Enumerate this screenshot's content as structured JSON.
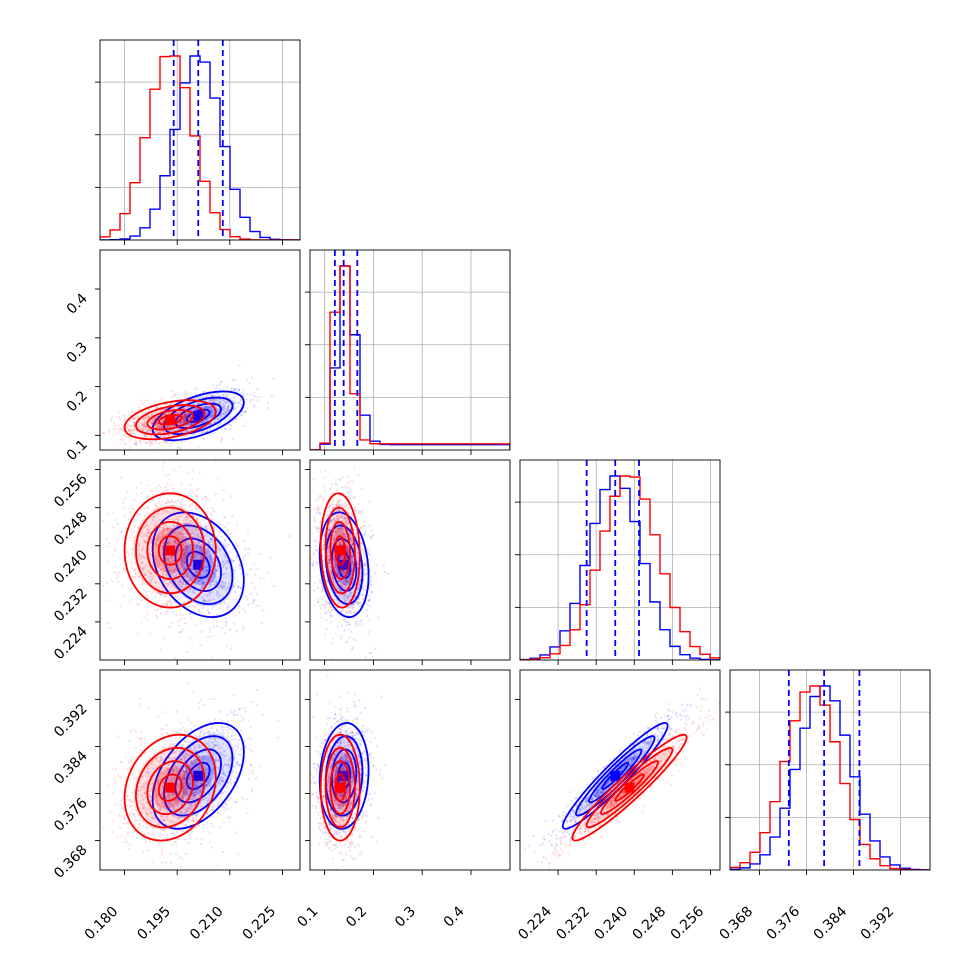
{
  "chart_data": {
    "type": "corner",
    "parameters": 4,
    "grid": true,
    "colors": {
      "series_a": "#0000ff",
      "series_b": "#ff0000"
    },
    "series": [
      {
        "color": "#0000ff",
        "means": [
          0.201,
          0.14,
          0.236,
          0.379
        ],
        "stds": [
          0.0065,
          0.025,
          0.0055,
          0.0045
        ],
        "corr": {
          "0-1": 0.55,
          "0-2": -0.3,
          "0-3": 0.45,
          "1-2": -0.2,
          "1-3": 0.1,
          "2-3": 0.95
        }
      },
      {
        "color": "#ff0000",
        "means": [
          0.193,
          0.132,
          0.239,
          0.377
        ],
        "stds": [
          0.0065,
          0.02,
          0.006,
          0.0045
        ],
        "corr": {
          "0-1": 0.4,
          "0-2": 0.0,
          "0-3": 0.2,
          "1-2": -0.1,
          "1-3": 0.0,
          "2-3": 0.95
        }
      }
    ],
    "quantiles": [
      [
        0.194,
        0.201,
        0.208
      ],
      [
        0.121,
        0.139,
        0.167
      ],
      [
        0.23,
        0.236,
        0.241
      ],
      [
        0.373,
        0.379,
        0.385
      ]
    ],
    "hist_peaks": [
      {
        "blue": 0.203,
        "red": 0.195
      },
      {
        "blue": 0.133,
        "red": 0.128
      },
      {
        "blue": 0.235,
        "red": 0.24
      },
      {
        "blue": 0.379,
        "red": 0.377
      }
    ],
    "axes": [
      {
        "xlim": [
          0.173,
          0.23
        ],
        "xticks": [
          "0.180",
          "0.195",
          "0.210",
          "0.225"
        ]
      },
      {
        "lim": [
          0.07,
          0.48
        ],
        "ticks": [
          "0.1",
          "0.2",
          "0.3",
          "0.4"
        ]
      },
      {
        "lim": [
          0.216,
          0.258
        ],
        "ticks": [
          "0.224",
          "0.232",
          "0.240",
          "0.248",
          "0.256"
        ],
        "bottom_ticks": [
          "0.224",
          "0.232",
          "0.240",
          "0.248",
          "0.256"
        ]
      },
      {
        "lim": [
          0.363,
          0.397
        ],
        "ticks": [
          "0.368",
          "0.376",
          "0.384",
          "0.392"
        ]
      }
    ]
  }
}
